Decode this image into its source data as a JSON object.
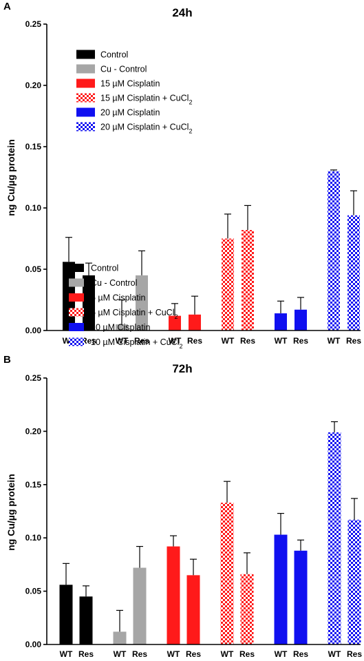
{
  "colors": {
    "control": "#000000",
    "cu_control": "#a6a6a6",
    "red": "#ff1a1a",
    "blue": "#1010f0",
    "white": "#ffffff"
  },
  "chart_data": [
    {
      "type": "bar",
      "panel_label": "A",
      "title": "24h",
      "ylabel": "ng Cu/µg protein",
      "xlabel": "",
      "ylim": [
        0,
        0.25
      ],
      "yticks": [
        "0.00",
        "0.05",
        "0.10",
        "0.15",
        "0.20",
        "0.25"
      ],
      "categories": [
        "WT",
        "Res"
      ],
      "legend_position": "top-left",
      "series": [
        {
          "name": "Control",
          "pattern": "solid",
          "color": "#000000",
          "values": [
            0.056,
            0.045
          ],
          "errors": [
            0.02,
            0.01
          ]
        },
        {
          "name": "Cu - Control",
          "pattern": "solid",
          "color": "#a6a6a6",
          "values": [
            0.005,
            0.045
          ],
          "errors": [
            0.02,
            0.02
          ]
        },
        {
          "name": "15 µM Cisplatin",
          "pattern": "solid",
          "color": "#ff1a1a",
          "values": [
            0.012,
            0.013
          ],
          "errors": [
            0.01,
            0.015
          ]
        },
        {
          "name": "15 µM Cisplatin + CuCl2",
          "name_main": "15 µM Cisplatin + CuCl",
          "name_sub": "2",
          "pattern": "checker",
          "color": "#ff1a1a",
          "values": [
            0.075,
            0.082
          ],
          "errors": [
            0.02,
            0.02
          ]
        },
        {
          "name": "20 µM Cisplatin",
          "pattern": "solid",
          "color": "#1010f0",
          "values": [
            0.014,
            0.017
          ],
          "errors": [
            0.01,
            0.01
          ]
        },
        {
          "name": "20 µM Cisplatin + CuCl2",
          "name_main": "20 µM Cisplatin + CuCl",
          "name_sub": "2",
          "pattern": "checker",
          "color": "#1010f0",
          "values": [
            0.13,
            0.094
          ],
          "errors": [
            0.001,
            0.02
          ]
        }
      ]
    },
    {
      "type": "bar",
      "panel_label": "B",
      "title": "72h",
      "ylabel": "ng Cu/µg protein",
      "xlabel": "",
      "ylim": [
        0,
        0.25
      ],
      "yticks": [
        "0.00",
        "0.05",
        "0.10",
        "0.15",
        "0.20",
        "0.25"
      ],
      "categories": [
        "WT",
        "Res"
      ],
      "legend_position": "top-left",
      "series": [
        {
          "name": "Control",
          "pattern": "solid",
          "color": "#000000",
          "values": [
            0.056,
            0.045
          ],
          "errors": [
            0.02,
            0.01
          ]
        },
        {
          "name": "Cu - Control",
          "pattern": "solid",
          "color": "#a6a6a6",
          "values": [
            0.012,
            0.072
          ],
          "errors": [
            0.02,
            0.02
          ]
        },
        {
          "name": "5 µM Cisplatin",
          "pattern": "solid",
          "color": "#ff1a1a",
          "values": [
            0.092,
            0.065
          ],
          "errors": [
            0.01,
            0.015
          ]
        },
        {
          "name": "5 µM Cisplatin + CuCl2",
          "name_main": "5 µM Cisplatin + CuCl",
          "name_sub": "2",
          "pattern": "checker",
          "color": "#ff1a1a",
          "values": [
            0.133,
            0.066
          ],
          "errors": [
            0.02,
            0.02
          ]
        },
        {
          "name": "10 µM Cisplatin",
          "pattern": "solid",
          "color": "#1010f0",
          "values": [
            0.103,
            0.088
          ],
          "errors": [
            0.02,
            0.01
          ]
        },
        {
          "name": "10 µM Cisplatin + CuCl2",
          "name_main": "10 µM Cisplatin + CuCl",
          "name_sub": "2",
          "pattern": "checker",
          "color": "#1010f0",
          "values": [
            0.199,
            0.117
          ],
          "errors": [
            0.01,
            0.02
          ]
        }
      ]
    }
  ]
}
